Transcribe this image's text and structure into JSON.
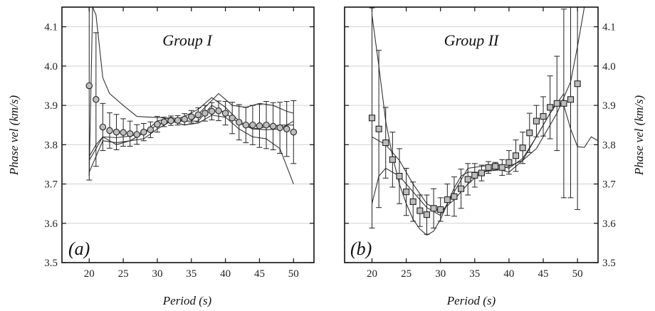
{
  "chart_data": [
    {
      "type": "line",
      "panel_label": "(a)",
      "title": "Group I",
      "xlabel": "Period (s)",
      "ylabel": "Phase vel (km/s)",
      "xlim": [
        16,
        53
      ],
      "ylim": [
        3.5,
        4.15
      ],
      "xticks": [
        "20",
        "25",
        "30",
        "35",
        "40",
        "45",
        "50"
      ],
      "yticks": [
        "3.5",
        "3.6",
        "3.7",
        "3.8",
        "3.9",
        "4.0",
        "4.1"
      ],
      "grid": true,
      "series": [
        {
          "kind": "points_with_error_bars",
          "marker": "circle",
          "x": [
            20,
            21,
            22,
            23,
            24,
            25,
            26,
            27,
            28,
            29,
            30,
            31,
            32,
            33,
            34,
            35,
            36,
            37,
            38,
            39,
            40,
            41,
            42,
            43,
            44,
            45,
            46,
            47,
            48,
            49,
            50
          ],
          "y": [
            3.95,
            3.915,
            3.845,
            3.836,
            3.832,
            3.831,
            3.828,
            3.826,
            3.832,
            3.838,
            3.852,
            3.858,
            3.861,
            3.862,
            3.865,
            3.871,
            3.876,
            3.88,
            3.885,
            3.886,
            3.88,
            3.868,
            3.857,
            3.85,
            3.85,
            3.848,
            3.85,
            3.847,
            3.843,
            3.84,
            3.832
          ],
          "err": [
            0.24,
            0.17,
            0.06,
            0.045,
            0.045,
            0.035,
            0.032,
            0.025,
            0.022,
            0.02,
            0.02,
            0.012,
            0.012,
            0.012,
            0.014,
            0.016,
            0.018,
            0.02,
            0.022,
            0.025,
            0.03,
            0.04,
            0.045,
            0.045,
            0.05,
            0.055,
            0.06,
            0.06,
            0.065,
            0.07,
            0.08
          ]
        },
        {
          "kind": "curve",
          "x": [
            20,
            20.5,
            21,
            22,
            23,
            25,
            27,
            29,
            31,
            33,
            35,
            37,
            39,
            41,
            43,
            45,
            47,
            49,
            50
          ],
          "y": [
            3.72,
            4.15,
            4.13,
            3.97,
            3.93,
            3.9,
            3.872,
            3.87,
            3.868,
            3.86,
            3.86,
            3.895,
            3.93,
            3.9,
            3.895,
            3.905,
            3.9,
            3.885,
            3.88
          ]
        },
        {
          "kind": "curve",
          "x": [
            20,
            21,
            22,
            24,
            26,
            28,
            30,
            32,
            34,
            36,
            38,
            40,
            42,
            44,
            46,
            48,
            50
          ],
          "y": [
            3.77,
            3.8,
            3.82,
            3.818,
            3.822,
            3.83,
            3.85,
            3.86,
            3.872,
            3.89,
            3.92,
            3.895,
            3.86,
            3.84,
            3.838,
            3.84,
            3.86
          ]
        },
        {
          "kind": "curve",
          "x": [
            20,
            22,
            24,
            26,
            28,
            30,
            32,
            34,
            36,
            38,
            40,
            42,
            44,
            46,
            48,
            50
          ],
          "y": [
            3.76,
            3.82,
            3.8,
            3.81,
            3.815,
            3.84,
            3.86,
            3.85,
            3.855,
            3.875,
            3.87,
            3.84,
            3.82,
            3.815,
            3.79,
            3.7
          ]
        },
        {
          "kind": "curve",
          "x": [
            20,
            22,
            24,
            26,
            28,
            30,
            32,
            34,
            36,
            38,
            40,
            42,
            44,
            46,
            48,
            50
          ],
          "y": [
            3.73,
            3.81,
            3.805,
            3.81,
            3.83,
            3.86,
            3.87,
            3.86,
            3.86,
            3.9,
            3.88,
            3.855,
            3.84,
            3.845,
            3.85,
            3.85
          ]
        }
      ]
    },
    {
      "type": "line",
      "panel_label": "(b)",
      "title": "Group II",
      "xlabel": "Period (s)",
      "ylabel": "Phase vel (km/s)",
      "xlim": [
        16,
        53
      ],
      "ylim": [
        3.5,
        4.15
      ],
      "xticks": [
        "20",
        "25",
        "30",
        "35",
        "40",
        "45",
        "50"
      ],
      "yticks": [
        "3.5",
        "3.6",
        "3.7",
        "3.8",
        "3.9",
        "4.0",
        "4.1"
      ],
      "grid": true,
      "series": [
        {
          "kind": "points_with_error_bars",
          "marker": "square",
          "x": [
            20,
            21,
            22,
            23,
            24,
            25,
            26,
            27,
            28,
            29,
            30,
            31,
            32,
            33,
            34,
            35,
            36,
            37,
            38,
            39,
            40,
            41,
            42,
            43,
            44,
            45,
            46,
            47,
            48,
            49,
            50
          ],
          "y": [
            3.868,
            3.84,
            3.805,
            3.762,
            3.72,
            3.68,
            3.655,
            3.632,
            3.622,
            3.638,
            3.635,
            3.66,
            3.668,
            3.688,
            3.712,
            3.722,
            3.728,
            3.742,
            3.745,
            3.742,
            3.755,
            3.772,
            3.792,
            3.83,
            3.86,
            3.872,
            3.895,
            3.905,
            3.905,
            3.915,
            3.955
          ],
          "err": [
            0.28,
            0.2,
            0.09,
            0.07,
            0.07,
            0.06,
            0.05,
            0.04,
            0.05,
            0.05,
            0.03,
            0.04,
            0.05,
            0.05,
            0.04,
            0.03,
            0.02,
            0.015,
            0.01,
            0.02,
            0.03,
            0.04,
            0.04,
            0.05,
            0.04,
            0.05,
            0.08,
            0.12,
            0.24,
            0.25,
            0.32
          ]
        },
        {
          "kind": "curve",
          "x": [
            20,
            21,
            22,
            23,
            24,
            25,
            26,
            27,
            28,
            29,
            30,
            31,
            32,
            33,
            34,
            36,
            38,
            40,
            42,
            44,
            45,
            46,
            47,
            48,
            49,
            50,
            51,
            52,
            53
          ],
          "y": [
            4.13,
            4.0,
            3.86,
            3.77,
            3.7,
            3.65,
            3.61,
            3.585,
            3.57,
            3.58,
            3.61,
            3.65,
            3.69,
            3.72,
            3.73,
            3.73,
            3.735,
            3.745,
            3.76,
            3.79,
            3.82,
            3.85,
            3.88,
            3.92,
            3.96,
            4.05,
            4.15,
            4.15,
            4.15
          ]
        },
        {
          "kind": "curve",
          "x": [
            20,
            21,
            22,
            24,
            26,
            28,
            30,
            32,
            34,
            36,
            38,
            40,
            42,
            44,
            46,
            47,
            48,
            49,
            50,
            51,
            52,
            53
          ],
          "y": [
            3.65,
            3.72,
            3.74,
            3.72,
            3.68,
            3.64,
            3.62,
            3.68,
            3.74,
            3.745,
            3.75,
            3.74,
            3.765,
            3.82,
            3.88,
            3.91,
            3.9,
            3.84,
            3.795,
            3.793,
            3.82,
            3.81
          ]
        },
        {
          "kind": "curve",
          "x": [
            20,
            22,
            24,
            26,
            28,
            30,
            32,
            34,
            36,
            38,
            40,
            42,
            44,
            46,
            48
          ],
          "y": [
            3.82,
            3.8,
            3.76,
            3.7,
            3.65,
            3.63,
            3.66,
            3.7,
            3.73,
            3.74,
            3.73,
            3.76,
            3.82,
            3.88,
            3.93
          ]
        }
      ]
    }
  ]
}
